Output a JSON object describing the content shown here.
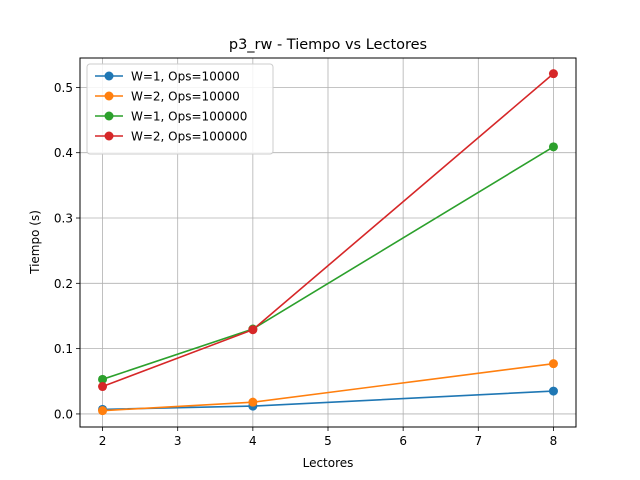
{
  "chart_data": {
    "type": "line",
    "title": "p3_rw - Tiempo vs Lectores",
    "xlabel": "Lectores",
    "ylabel": "Tiempo (s)",
    "xlim": [
      1.7,
      8.3
    ],
    "ylim": [
      -0.02,
      0.545
    ],
    "xticks": [
      2,
      3,
      4,
      5,
      6,
      7,
      8
    ],
    "yticks": [
      0.0,
      0.1,
      0.2,
      0.3,
      0.4,
      0.5
    ],
    "xtick_labels": [
      "2",
      "3",
      "4",
      "5",
      "6",
      "7",
      "8"
    ],
    "ytick_labels": [
      "0.0",
      "0.1",
      "0.2",
      "0.3",
      "0.4",
      "0.5"
    ],
    "grid": true,
    "legend_position": "top-left",
    "x": [
      2,
      4,
      8
    ],
    "series": [
      {
        "name": "W=1, Ops=10000",
        "color": "#1f77b4",
        "values": [
          0.007,
          0.012,
          0.035
        ]
      },
      {
        "name": "W=2, Ops=10000",
        "color": "#ff7f0e",
        "values": [
          0.005,
          0.018,
          0.077
        ]
      },
      {
        "name": "W=1, Ops=100000",
        "color": "#2ca02c",
        "values": [
          0.053,
          0.13,
          0.409
        ]
      },
      {
        "name": "W=2, Ops=100000",
        "color": "#d62728",
        "values": [
          0.042,
          0.129,
          0.521
        ]
      }
    ]
  }
}
